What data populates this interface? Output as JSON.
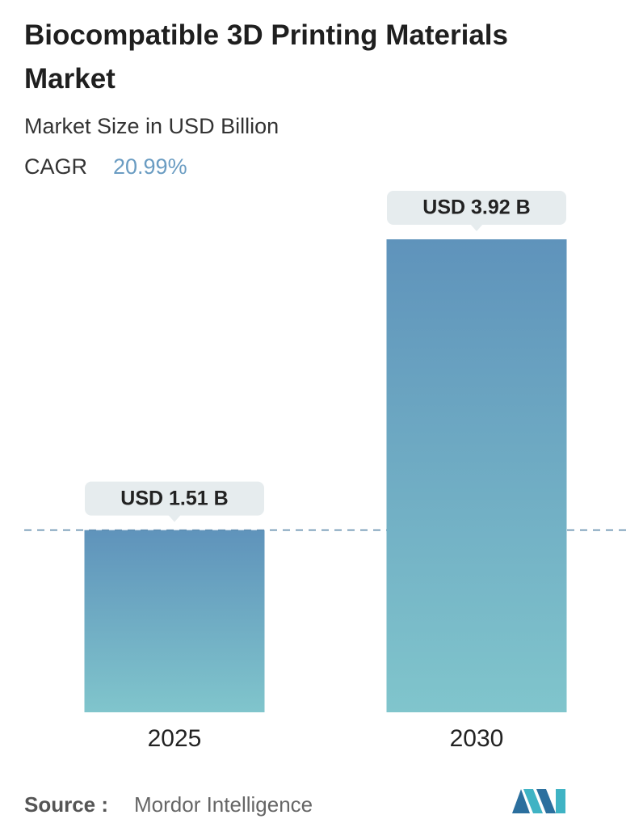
{
  "chart_data": {
    "type": "bar",
    "title": "Biocompatible 3D Printing Materials Market",
    "subtitle": "Market Size in USD Billion",
    "cagr_label": "CAGR",
    "cagr_value": "20.99%",
    "categories": [
      "2025",
      "2030"
    ],
    "values": [
      1.51,
      3.92
    ],
    "value_labels": [
      "USD 1.51 B",
      "USD 3.92 B"
    ],
    "source_label": "Source :",
    "source": "Mordor Intelligence"
  }
}
